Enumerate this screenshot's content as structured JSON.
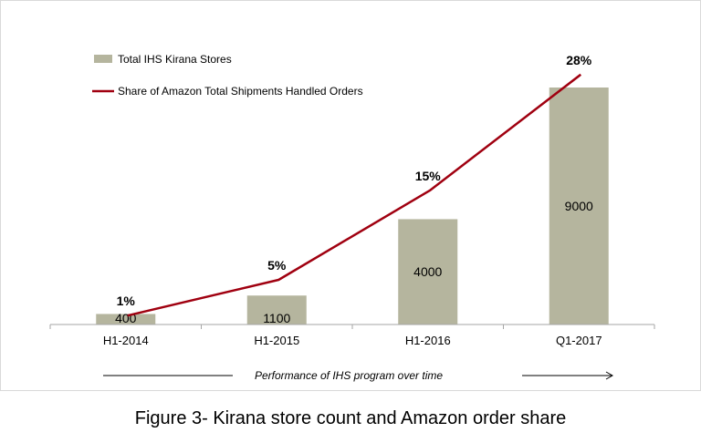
{
  "chart_data": {
    "type": "bar",
    "categories": [
      "H1-2014",
      "H1-2015",
      "H1-2016",
      "Q1-2017"
    ],
    "series": [
      {
        "name": "Total IHS Kirana Stores",
        "type": "bar",
        "values": [
          400,
          1100,
          4000,
          9000
        ],
        "data_labels": [
          "400",
          "1100",
          "4000",
          "9000"
        ],
        "color": "#b5b59e"
      },
      {
        "name": "Share of Amazon Total Shipments Handled Orders",
        "type": "line",
        "values": [
          1,
          5,
          15,
          28
        ],
        "data_labels": [
          "1%",
          "5%",
          "15%",
          "28%"
        ],
        "color": "#a00010"
      }
    ],
    "bar_axis_range": [
      0,
      9900
    ],
    "line_axis_range": [
      0,
      29.2
    ],
    "legend_position": "top-left",
    "grid": false,
    "annotation": "Performance of IHS program over time"
  },
  "caption": "Figure 3- Kirana store count and Amazon order share"
}
